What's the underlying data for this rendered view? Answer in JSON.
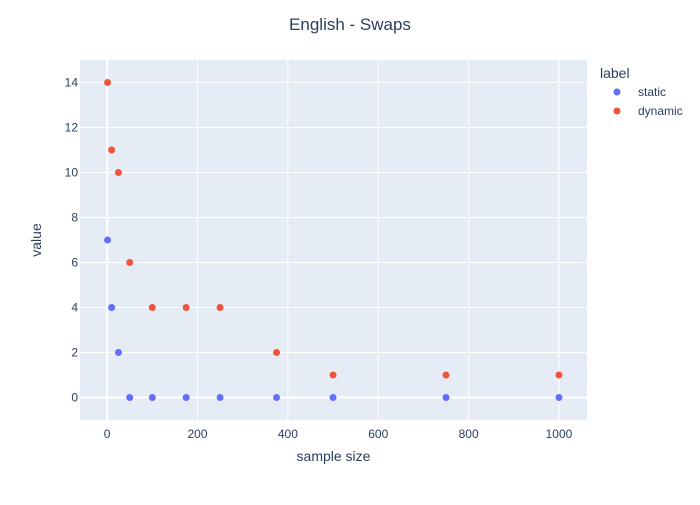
{
  "chart_data": {
    "type": "scatter",
    "title": "English - Swaps",
    "xlabel": "sample size",
    "ylabel": "value",
    "xlim": [
      -60,
      1062
    ],
    "ylim": [
      -1,
      15
    ],
    "xticks": [
      0,
      200,
      400,
      600,
      800,
      1000
    ],
    "yticks": [
      0,
      2,
      4,
      6,
      8,
      10,
      12,
      14
    ],
    "grid": true,
    "legend": {
      "title": "label",
      "placement": "top-right-outside"
    },
    "series": [
      {
        "name": "static",
        "color": "#636efa",
        "x": [
          1,
          10,
          25,
          50,
          100,
          175,
          250,
          375,
          500,
          750,
          1000
        ],
        "y": [
          7,
          4,
          2,
          0,
          0,
          0,
          0,
          0,
          0,
          0,
          0
        ]
      },
      {
        "name": "dynamic",
        "color": "#ef553b",
        "x": [
          1,
          10,
          25,
          50,
          100,
          175,
          250,
          375,
          500,
          750,
          1000
        ],
        "y": [
          14,
          11,
          10,
          6,
          4,
          4,
          4,
          2,
          1,
          1,
          1
        ]
      }
    ]
  }
}
